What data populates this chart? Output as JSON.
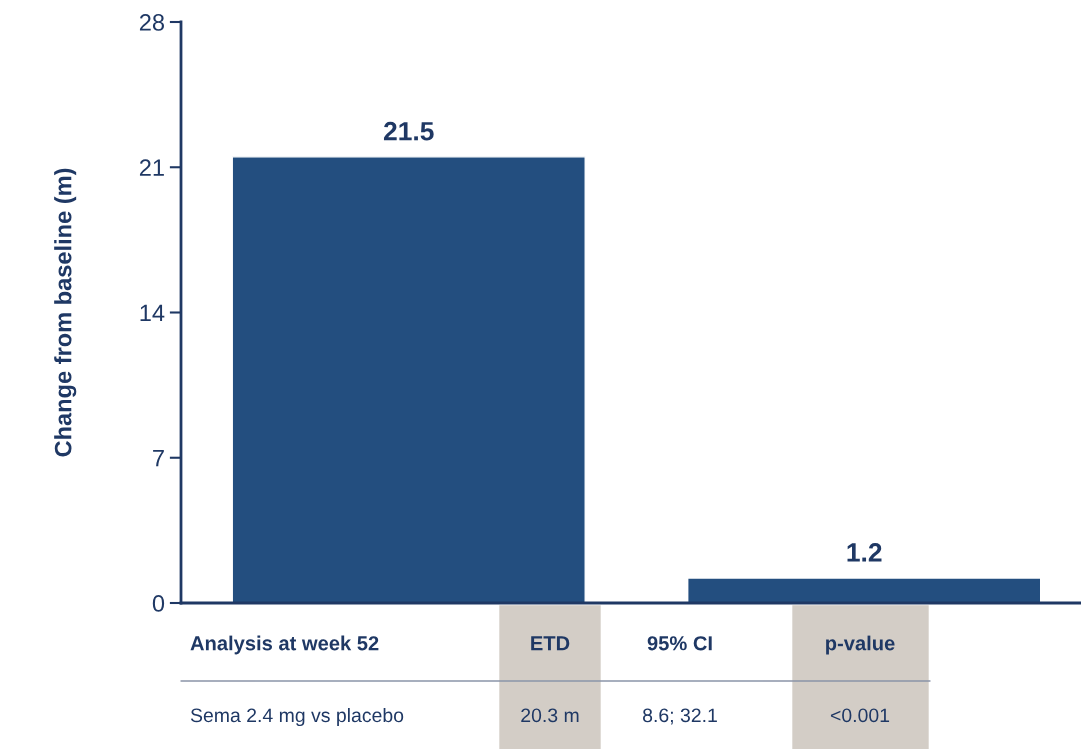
{
  "chart_data": {
    "type": "bar",
    "ylabel": "Change from baseline (m)",
    "categories": [
      null,
      null
    ],
    "values": [
      21.5,
      1.2
    ],
    "color": "#234e7f",
    "ylim": [
      0,
      28
    ],
    "yticks": [
      0,
      7,
      14,
      21,
      28
    ],
    "grid": false,
    "data_labels": true,
    "annotations": [
      "Analysis at week 52",
      "ETD",
      "95% CI",
      "p-value",
      "Sema 2.4 mg vs placebo",
      "20.3 m",
      "8.6; 32.1",
      "<0.001"
    ]
  }
}
